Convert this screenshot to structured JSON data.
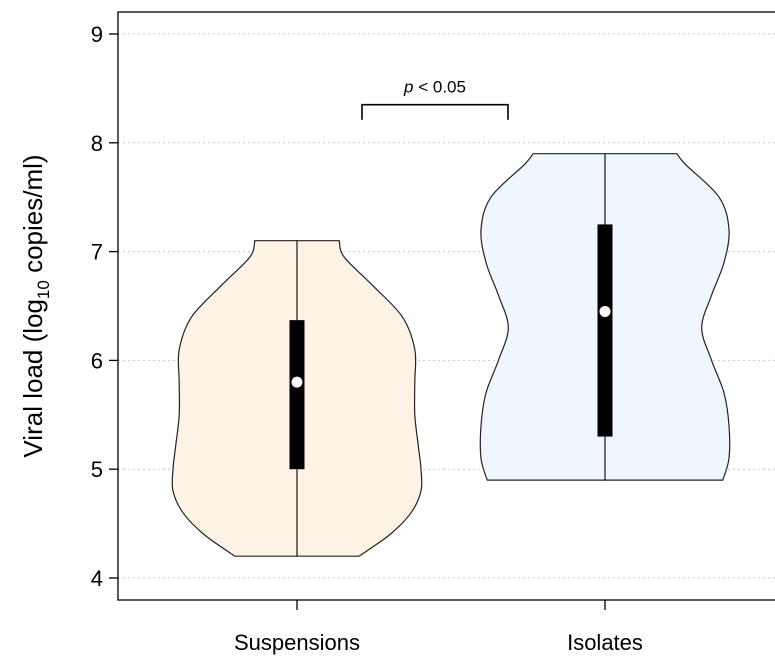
{
  "chart_data": {
    "type": "violin",
    "ylabel_main": "Viral load (log",
    "ylabel_sub": "10",
    "ylabel_tail": " copies/ml)",
    "ylim": [
      3.85,
      9.2
    ],
    "yticks": [
      4,
      5,
      6,
      7,
      8,
      9
    ],
    "grid": true,
    "categories": [
      "Suspensions",
      "Isolates"
    ],
    "series": [
      {
        "category": "Suspensions",
        "fill": "#fdf3e5",
        "min": 4.2,
        "max": 7.1,
        "q1": 5.0,
        "median": 5.8,
        "q3": 6.37,
        "density": [
          [
            4.2,
            0.5
          ],
          [
            4.4,
            0.75
          ],
          [
            4.6,
            0.92
          ],
          [
            4.8,
            1.0
          ],
          [
            5.0,
            1.0
          ],
          [
            5.2,
            0.98
          ],
          [
            5.5,
            0.95
          ],
          [
            5.8,
            0.95
          ],
          [
            6.1,
            0.95
          ],
          [
            6.4,
            0.85
          ],
          [
            6.7,
            0.6
          ],
          [
            6.95,
            0.38
          ],
          [
            7.1,
            0.34
          ]
        ]
      },
      {
        "category": "Isolates",
        "fill": "#eff6fd",
        "min": 4.9,
        "max": 7.9,
        "q1": 5.3,
        "median": 6.45,
        "q3": 7.25,
        "density": [
          [
            4.9,
            0.95
          ],
          [
            5.1,
            1.0
          ],
          [
            5.4,
            1.0
          ],
          [
            5.7,
            0.96
          ],
          [
            6.0,
            0.86
          ],
          [
            6.3,
            0.78
          ],
          [
            6.6,
            0.86
          ],
          [
            6.9,
            0.96
          ],
          [
            7.2,
            1.0
          ],
          [
            7.5,
            0.92
          ],
          [
            7.8,
            0.65
          ],
          [
            7.9,
            0.58
          ]
        ]
      }
    ],
    "annotation": {
      "label_italic": "p",
      "label_rest": " < 0.05",
      "y": 8.35
    }
  }
}
